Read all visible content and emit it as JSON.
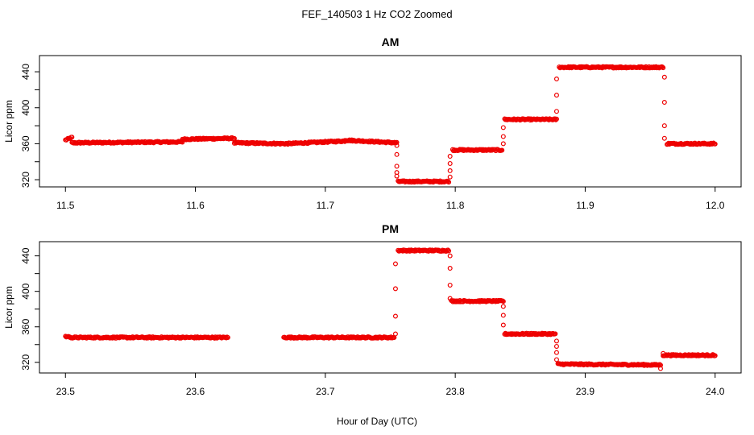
{
  "figure": {
    "title": "FEF_140503  1 Hz CO2 Zoomed",
    "xlabel": "Hour of Day (UTC)",
    "ylabel": "Licor ppm"
  },
  "colors": {
    "points": "#ee0000",
    "axis": "#000000"
  },
  "chart_data": [
    {
      "type": "scatter",
      "title": "AM",
      "ylabel": "Licor ppm",
      "xlim": [
        11.48,
        12.02
      ],
      "ylim": [
        312,
        458
      ],
      "xticks": [
        11.5,
        11.6,
        11.7,
        11.8,
        11.9,
        12.0
      ],
      "xtick_labels": [
        "11.5",
        "11.6",
        "11.7",
        "11.8",
        "11.9",
        "12.0"
      ],
      "yticks": [
        320,
        360,
        400,
        440
      ],
      "ytick_labels": [
        "320",
        "360",
        "400",
        "440"
      ],
      "series": [
        {
          "segments": [
            {
              "x0": 11.5,
              "x1": 11.505,
              "y0": 364,
              "y1": 367
            },
            {
              "x0": 11.505,
              "x1": 11.59,
              "y0": 361,
              "y1": 362
            },
            {
              "x0": 11.59,
              "x1": 11.63,
              "y0": 365,
              "y1": 366
            },
            {
              "x0": 11.63,
              "x1": 11.67,
              "y0": 361,
              "y1": 360
            },
            {
              "x0": 11.67,
              "x1": 11.715,
              "y0": 360,
              "y1": 363
            },
            {
              "x0": 11.715,
              "x1": 11.755,
              "y0": 364,
              "y1": 361
            },
            {
              "x0": 11.756,
              "x1": 11.795,
              "y0": 318,
              "y1": 318
            },
            {
              "x0": 11.798,
              "x1": 11.836,
              "y0": 353,
              "y1": 353
            },
            {
              "x0": 11.838,
              "x1": 11.878,
              "y0": 387,
              "y1": 387
            },
            {
              "x0": 11.88,
              "x1": 11.96,
              "y0": 445,
              "y1": 445
            },
            {
              "x0": 11.963,
              "x1": 12.0,
              "y0": 360,
              "y1": 360
            }
          ],
          "transitions": [
            {
              "x": 11.755,
              "y": [
                358,
                348,
                335,
                328,
                324
              ]
            },
            {
              "x": 11.796,
              "y": [
                323,
                330,
                338,
                346
              ]
            },
            {
              "x": 11.837,
              "y": [
                360,
                368,
                378
              ]
            },
            {
              "x": 11.878,
              "y": [
                396,
                414,
                432
              ]
            },
            {
              "x": 11.961,
              "y": [
                434,
                406,
                380,
                366
              ]
            }
          ]
        }
      ]
    },
    {
      "type": "scatter",
      "title": "PM",
      "ylabel": "Licor ppm",
      "xlim": [
        23.48,
        24.02
      ],
      "ylim": [
        308,
        456
      ],
      "xticks": [
        23.5,
        23.6,
        23.7,
        23.8,
        23.9,
        24.0
      ],
      "xtick_labels": [
        "23.5",
        "23.6",
        "23.7",
        "23.8",
        "23.9",
        "24.0"
      ],
      "yticks": [
        320,
        360,
        400,
        440
      ],
      "ytick_labels": [
        "320",
        "360",
        "400",
        "440"
      ],
      "series": [
        {
          "segments": [
            {
              "x0": 23.5,
              "x1": 23.503,
              "y0": 349,
              "y1": 349
            },
            {
              "x0": 23.503,
              "x1": 23.625,
              "y0": 348,
              "y1": 348
            },
            {
              "x0": 23.668,
              "x1": 23.753,
              "y0": 348,
              "y1": 348
            },
            {
              "x0": 23.756,
              "x1": 23.795,
              "y0": 446,
              "y1": 446
            },
            {
              "x0": 23.797,
              "x1": 23.837,
              "y0": 389,
              "y1": 389
            },
            {
              "x0": 23.838,
              "x1": 23.877,
              "y0": 352,
              "y1": 352
            },
            {
              "x0": 23.879,
              "x1": 23.958,
              "y0": 318,
              "y1": 317
            },
            {
              "x0": 23.96,
              "x1": 24.0,
              "y0": 328,
              "y1": 328
            }
          ],
          "transitions": [
            {
              "x": 23.754,
              "y": [
                352,
                372,
                403,
                431
              ]
            },
            {
              "x": 23.796,
              "y": [
                440,
                426,
                407,
                392
              ]
            },
            {
              "x": 23.837,
              "y": [
                383,
                373,
                362
              ]
            },
            {
              "x": 23.878,
              "y": [
                344,
                338,
                331,
                323
              ]
            },
            {
              "x": 23.958,
              "y": [
                313
              ]
            },
            {
              "x": 23.96,
              "y": [
                330
              ]
            }
          ]
        }
      ]
    }
  ]
}
